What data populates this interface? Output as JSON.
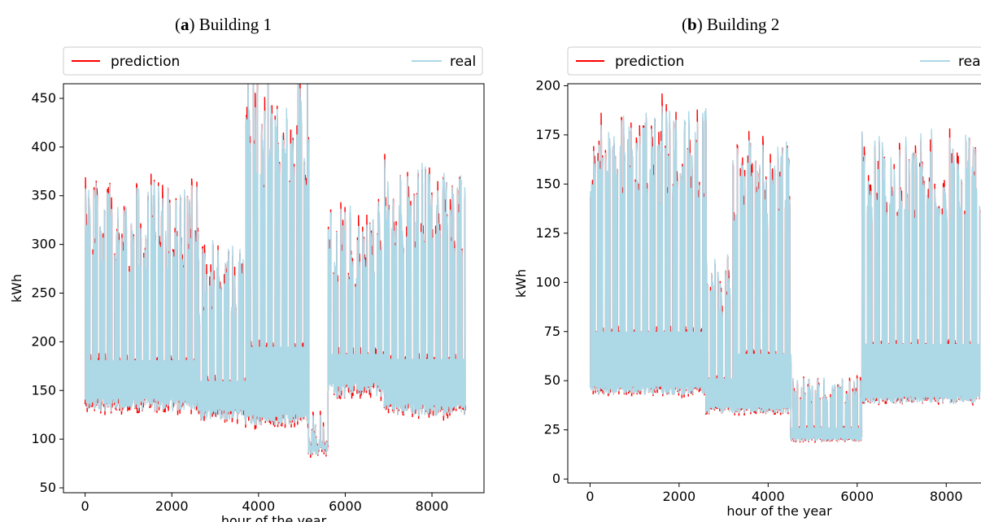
{
  "chart_data": [
    {
      "type": "line",
      "panel_letter": "a",
      "title": "Building 1",
      "xlabel": "hour of the year",
      "ylabel": "kWh",
      "xlim": [
        -500,
        9200
      ],
      "ylim": [
        45,
        465
      ],
      "x_ticks": [
        0,
        2000,
        4000,
        6000,
        8000
      ],
      "y_ticks": [
        50,
        100,
        150,
        200,
        250,
        300,
        350,
        400,
        450
      ],
      "grid": false,
      "legend_position": "top",
      "series": [
        {
          "name": "prediction",
          "color": "#ff0000"
        },
        {
          "name": "real",
          "color": "#add8e6"
        }
      ],
      "segments": [
        {
          "x": [
            0,
            2600
          ],
          "base": 135,
          "peak": 320
        },
        {
          "x": [
            2600,
            3700
          ],
          "base": 125,
          "peak": 265
        },
        {
          "x": [
            3700,
            5150
          ],
          "base": 120,
          "peak": 420
        },
        {
          "x": [
            5150,
            5600
          ],
          "base": 88,
          "peak": 110
        },
        {
          "x": [
            5600,
            6900
          ],
          "base": 150,
          "peak": 300
        },
        {
          "x": [
            6900,
            8760
          ],
          "base": 130,
          "peak": 340
        }
      ]
    },
    {
      "type": "line",
      "panel_letter": "b",
      "title": "Building 2",
      "xlabel": "hour of the year",
      "ylabel": "kWh",
      "xlim": [
        -500,
        9000
      ],
      "ylim": [
        -2,
        201
      ],
      "x_ticks": [
        0,
        2000,
        4000,
        6000,
        8000
      ],
      "y_ticks": [
        0,
        25,
        50,
        75,
        100,
        125,
        150,
        175,
        200
      ],
      "grid": false,
      "legend_position": "top",
      "series": [
        {
          "name": "prediction",
          "color": "#ff0000"
        },
        {
          "name": "real",
          "color": "#add8e6"
        }
      ],
      "segments": [
        {
          "x": [
            0,
            2600
          ],
          "base": 45,
          "peak": 165
        },
        {
          "x": [
            2600,
            3200
          ],
          "base": 35,
          "peak": 100
        },
        {
          "x": [
            3200,
            4500
          ],
          "base": 35,
          "peak": 150
        },
        {
          "x": [
            4500,
            6100
          ],
          "base": 20,
          "peak": 45
        },
        {
          "x": [
            6100,
            8760
          ],
          "base": 40,
          "peak": 155
        }
      ]
    }
  ]
}
